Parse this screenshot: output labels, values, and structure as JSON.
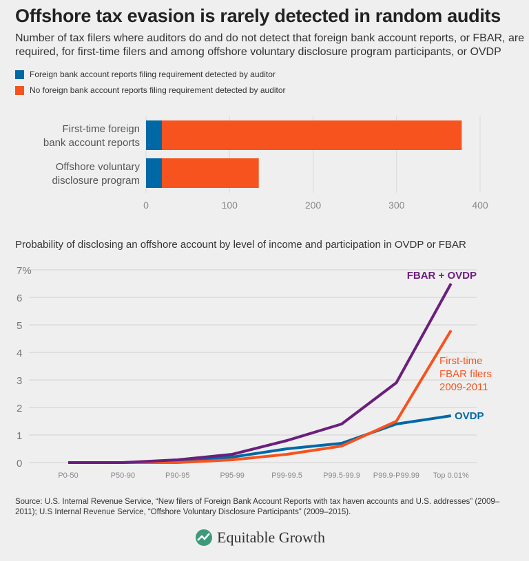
{
  "title": "Offshore tax evasion is rarely detected in random audits",
  "subtitle": "Number of tax filers where auditors do and do not detect that foreign bank account reports, or FBAR, are required, for first-time filers and among offshore voluntary disclosure program participants, or OVDP",
  "colors": {
    "blue": "#0068a5",
    "orange": "#f7531f",
    "purple": "#6b1f7c"
  },
  "chart_data": [
    {
      "type": "bar",
      "orientation": "horizontal",
      "stacked": true,
      "categories": [
        "First-time foreign bank account reports",
        "Offshore voluntary disclosure program"
      ],
      "category_lines": [
        [
          "First-time foreign",
          "bank account reports"
        ],
        [
          "Offshore voluntary",
          "disclosure program"
        ]
      ],
      "series": [
        {
          "name": "Foreign bank account reports filing requirement detected by auditor",
          "color": "#0068a5",
          "values": [
            19,
            19
          ]
        },
        {
          "name": "No foreign bank account reports filing requirement detected by auditor",
          "color": "#f7531f",
          "values": [
            359,
            116
          ]
        }
      ],
      "xlim": [
        0,
        400
      ],
      "xticks": [
        "0",
        "100",
        "200",
        "300",
        "400"
      ],
      "grid": true,
      "legend": "top-left"
    },
    {
      "type": "line",
      "title": "Probability of disclosing an offshore account by level of income and participation in OVDP or FBAR",
      "categories": [
        "P0-50",
        "P50-90",
        "P90-95",
        "P95-99",
        "P99-99.5",
        "P99.5-99.9",
        "P99.9-P99.99",
        "Top 0.01%"
      ],
      "yticks": [
        "0",
        "1",
        "2",
        "3",
        "4",
        "5",
        "6",
        "7%"
      ],
      "ylim": [
        0,
        7
      ],
      "grid": true,
      "series": [
        {
          "name": "OVDP",
          "color": "#0068a5",
          "values": [
            0,
            0,
            0.05,
            0.2,
            0.5,
            0.7,
            1.4,
            1.7
          ]
        },
        {
          "name": "First-time FBAR filers 2009-2011",
          "name_lines": [
            "First-time",
            "FBAR filers",
            "2009-2011"
          ],
          "color": "#f7531f",
          "values": [
            0,
            0,
            0,
            0.1,
            0.3,
            0.6,
            1.5,
            4.8
          ]
        },
        {
          "name": "FBAR + OVDP",
          "color": "#6b1f7c",
          "values": [
            0,
            0,
            0.1,
            0.3,
            0.8,
            1.4,
            2.9,
            6.5
          ]
        }
      ]
    }
  ],
  "source": "Source: U.S. Internal Revenue Service, “New filers of Foreign Bank Account Reports with tax haven accounts and U.S. addresses” (2009–2011); U.S Internal Revenue Service, “Offshore Voluntary Disclosure Participants” (2009–2015).",
  "logo": "Equitable Growth"
}
